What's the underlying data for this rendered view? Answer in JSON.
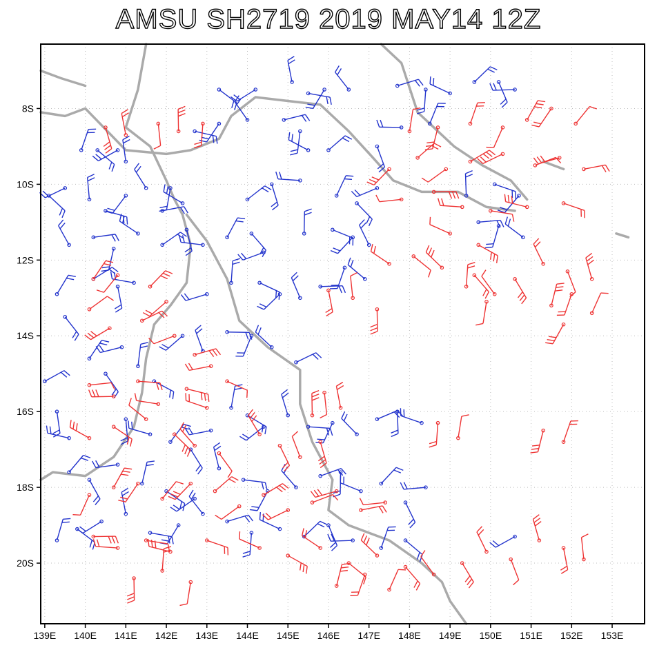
{
  "title": "AMSU SH2719 2019 MAY14 12Z",
  "map": {
    "lon_range": [
      138.9,
      153.8
    ],
    "lat_range": [
      -21.6,
      -6.3
    ],
    "lon_ticks": [
      "139E",
      "140E",
      "141E",
      "142E",
      "143E",
      "144E",
      "145E",
      "146E",
      "147E",
      "148E",
      "149E",
      "150E",
      "151E",
      "152E",
      "153E"
    ],
    "lat_ticks": [
      "8S",
      "10S",
      "12S",
      "14S",
      "16S",
      "18S",
      "20S"
    ],
    "grid": true,
    "colors": {
      "coast": "#aaaaaa",
      "upper_winds": "#2233cc",
      "lower_winds": "#ee3333",
      "grid": "#bbbbbb"
    }
  },
  "wind_barbs": {
    "blue": [
      [
        143.3,
        -7.5
      ],
      [
        144.2,
        -7.5
      ],
      [
        145.1,
        -7.3
      ],
      [
        145.5,
        -7.6
      ],
      [
        145.9,
        -7.5
      ],
      [
        146.5,
        -7.5
      ],
      [
        147.7,
        -7.4
      ],
      [
        148.4,
        -7.5
      ],
      [
        149.0,
        -7.6
      ],
      [
        149.6,
        -7.3
      ],
      [
        150.2,
        -7.3
      ],
      [
        150.6,
        -7.5
      ],
      [
        139.9,
        -9.1
      ],
      [
        140.3,
        -9.1
      ],
      [
        140.8,
        -9.1
      ],
      [
        141.0,
        -9.4
      ],
      [
        142.7,
        -8.6
      ],
      [
        143.3,
        -8.4
      ],
      [
        144.0,
        -8.3
      ],
      [
        144.9,
        -8.3
      ],
      [
        145.3,
        -8.6
      ],
      [
        145.5,
        -9.1
      ],
      [
        146.0,
        -9.1
      ],
      [
        147.2,
        -9.0
      ],
      [
        147.8,
        -8.5
      ],
      [
        148.5,
        -8.4
      ],
      [
        139.1,
        -10.3
      ],
      [
        139.5,
        -10.1
      ],
      [
        140.1,
        -10.4
      ],
      [
        140.5,
        -10.7
      ],
      [
        141.0,
        -10.3
      ],
      [
        141.5,
        -10.1
      ],
      [
        141.9,
        -10.7
      ],
      [
        142.1,
        -10.1
      ],
      [
        142.4,
        -10.5
      ],
      [
        144.0,
        -10.4
      ],
      [
        144.6,
        -10.0
      ],
      [
        145.3,
        -9.9
      ],
      [
        146.2,
        -10.3
      ],
      [
        146.7,
        -10.5
      ],
      [
        147.2,
        -10.1
      ],
      [
        149.4,
        -10.3
      ],
      [
        150.1,
        -10.0
      ],
      [
        150.7,
        -10.3
      ],
      [
        139.6,
        -11.6
      ],
      [
        140.2,
        -11.4
      ],
      [
        140.7,
        -11.7
      ],
      [
        141.3,
        -11.3
      ],
      [
        141.9,
        -11.6
      ],
      [
        142.5,
        -11.2
      ],
      [
        142.9,
        -11.6
      ],
      [
        143.5,
        -11.4
      ],
      [
        144.1,
        -11.3
      ],
      [
        144.4,
        -11.8
      ],
      [
        145.4,
        -11.3
      ],
      [
        146.1,
        -11.2
      ],
      [
        146.6,
        -11.4
      ],
      [
        147.0,
        -11.6
      ],
      [
        149.7,
        -11.0
      ],
      [
        150.2,
        -11.1
      ],
      [
        150.8,
        -11.4
      ],
      [
        140.2,
        -12.5
      ],
      [
        140.8,
        -12.7
      ],
      [
        141.2,
        -12.6
      ],
      [
        139.3,
        -12.9
      ],
      [
        139.5,
        -13.5
      ],
      [
        143.0,
        -12.9
      ],
      [
        143.6,
        -12.6
      ],
      [
        144.3,
        -12.6
      ],
      [
        144.8,
        -12.9
      ],
      [
        145.3,
        -13.0
      ],
      [
        145.8,
        -12.7
      ],
      [
        146.4,
        -12.2
      ],
      [
        146.9,
        -12.5
      ],
      [
        139.0,
        -15.2
      ],
      [
        139.3,
        -16.0
      ],
      [
        139.6,
        -16.7
      ],
      [
        140.1,
        -14.6
      ],
      [
        140.5,
        -15.0
      ],
      [
        140.9,
        -14.3
      ],
      [
        141.3,
        -14.8
      ],
      [
        141.7,
        -15.2
      ],
      [
        142.4,
        -14.0
      ],
      [
        142.9,
        -14.4
      ],
      [
        143.5,
        -13.9
      ],
      [
        144.1,
        -14.0
      ],
      [
        144.6,
        -14.3
      ],
      [
        145.2,
        -14.7
      ],
      [
        141.0,
        -16.2
      ],
      [
        141.6,
        -16.6
      ],
      [
        142.1,
        -16.8
      ],
      [
        142.6,
        -17.0
      ],
      [
        143.1,
        -16.5
      ],
      [
        143.6,
        -15.9
      ],
      [
        144.0,
        -16.1
      ],
      [
        144.4,
        -16.4
      ],
      [
        145.0,
        -16.1
      ],
      [
        145.5,
        -16.4
      ],
      [
        146.1,
        -16.3
      ],
      [
        146.7,
        -16.6
      ],
      [
        147.2,
        -16.2
      ],
      [
        147.7,
        -16.0
      ],
      [
        148.3,
        -16.3
      ],
      [
        139.6,
        -17.6
      ],
      [
        140.1,
        -17.8
      ],
      [
        140.8,
        -17.4
      ],
      [
        141.4,
        -17.9
      ],
      [
        142.0,
        -18.1
      ],
      [
        142.7,
        -18.3
      ],
      [
        143.3,
        -17.5
      ],
      [
        143.9,
        -17.8
      ],
      [
        144.5,
        -18.1
      ],
      [
        145.2,
        -18.0
      ],
      [
        145.8,
        -17.7
      ],
      [
        146.3,
        -17.6
      ],
      [
        146.8,
        -18.1
      ],
      [
        147.3,
        -17.9
      ],
      [
        147.9,
        -18.4
      ],
      [
        148.4,
        -18.0
      ],
      [
        139.3,
        -19.4
      ],
      [
        139.8,
        -19.1
      ],
      [
        140.4,
        -18.9
      ],
      [
        141.0,
        -18.7
      ],
      [
        141.6,
        -19.2
      ],
      [
        142.3,
        -19.0
      ],
      [
        142.9,
        -18.7
      ],
      [
        143.5,
        -18.9
      ],
      [
        144.1,
        -19.2
      ],
      [
        144.8,
        -19.1
      ],
      [
        145.4,
        -19.3
      ],
      [
        146.0,
        -19.0
      ],
      [
        146.6,
        -19.4
      ],
      [
        147.3,
        -19.6
      ],
      [
        147.9,
        -19.4
      ],
      [
        150.6,
        -19.3
      ]
    ],
    "red": [
      [
        140.5,
        -8.5
      ],
      [
        141.0,
        -8.7
      ],
      [
        141.8,
        -8.4
      ],
      [
        142.3,
        -8.6
      ],
      [
        142.9,
        -8.4
      ],
      [
        148.0,
        -8.6
      ],
      [
        148.7,
        -8.5
      ],
      [
        149.5,
        -8.4
      ],
      [
        150.3,
        -8.5
      ],
      [
        150.9,
        -8.3
      ],
      [
        151.5,
        -8.0
      ],
      [
        152.1,
        -8.4
      ],
      [
        147.5,
        -9.6
      ],
      [
        148.2,
        -9.3
      ],
      [
        148.9,
        -9.6
      ],
      [
        149.5,
        -9.4
      ],
      [
        150.3,
        -9.2
      ],
      [
        151.1,
        -9.5
      ],
      [
        151.7,
        -9.3
      ],
      [
        152.3,
        -9.6
      ],
      [
        147.8,
        -10.4
      ],
      [
        148.6,
        -10.2
      ],
      [
        149.3,
        -10.6
      ],
      [
        150.0,
        -10.7
      ],
      [
        150.9,
        -10.6
      ],
      [
        151.8,
        -10.5
      ],
      [
        149.0,
        -11.3
      ],
      [
        149.7,
        -11.6
      ],
      [
        147.5,
        -12.1
      ],
      [
        148.1,
        -11.9
      ],
      [
        148.8,
        -12.2
      ],
      [
        149.6,
        -12.4
      ],
      [
        150.1,
        -12.9
      ],
      [
        150.6,
        -12.5
      ],
      [
        151.3,
        -12.1
      ],
      [
        151.9,
        -12.3
      ],
      [
        152.5,
        -12.5
      ],
      [
        146.0,
        -12.8
      ],
      [
        146.6,
        -13.0
      ],
      [
        147.2,
        -13.3
      ],
      [
        149.4,
        -12.7
      ],
      [
        149.9,
        -13.1
      ],
      [
        151.5,
        -13.2
      ],
      [
        152.0,
        -12.9
      ],
      [
        152.5,
        -13.4
      ],
      [
        151.8,
        -13.7
      ],
      [
        140.2,
        -12.5
      ],
      [
        140.8,
        -12.4
      ],
      [
        141.6,
        -12.7
      ],
      [
        142.0,
        -13.1
      ],
      [
        140.1,
        -13.3
      ],
      [
        140.6,
        -13.8
      ],
      [
        141.4,
        -13.6
      ],
      [
        142.2,
        -14.0
      ],
      [
        142.7,
        -14.5
      ],
      [
        143.1,
        -14.8
      ],
      [
        140.1,
        -15.3
      ],
      [
        140.7,
        -15.6
      ],
      [
        141.3,
        -15.2
      ],
      [
        141.8,
        -15.8
      ],
      [
        142.5,
        -15.4
      ],
      [
        143.0,
        -15.9
      ],
      [
        143.5,
        -15.2
      ],
      [
        140.1,
        -16.7
      ],
      [
        140.7,
        -16.4
      ],
      [
        141.5,
        -16.2
      ],
      [
        142.2,
        -16.6
      ],
      [
        142.7,
        -16.9
      ],
      [
        143.3,
        -17.1
      ],
      [
        144.3,
        -16.6
      ],
      [
        144.8,
        -16.9
      ],
      [
        145.3,
        -17.2
      ],
      [
        145.8,
        -16.8
      ],
      [
        146.3,
        -15.9
      ],
      [
        145.9,
        -15.5
      ],
      [
        145.6,
        -16.1
      ],
      [
        148.7,
        -16.3
      ],
      [
        149.2,
        -16.7
      ],
      [
        151.3,
        -16.5
      ],
      [
        151.8,
        -16.8
      ],
      [
        140.1,
        -18.2
      ],
      [
        140.7,
        -18.0
      ],
      [
        141.3,
        -17.9
      ],
      [
        141.9,
        -18.3
      ],
      [
        142.6,
        -17.9
      ],
      [
        143.2,
        -18.1
      ],
      [
        143.8,
        -18.5
      ],
      [
        144.4,
        -18.2
      ],
      [
        145.0,
        -18.6
      ],
      [
        145.6,
        -18.4
      ],
      [
        146.2,
        -18.1
      ],
      [
        146.8,
        -18.6
      ],
      [
        147.4,
        -18.4
      ],
      [
        140.2,
        -19.3
      ],
      [
        140.8,
        -19.6
      ],
      [
        141.5,
        -19.4
      ],
      [
        142.1,
        -19.7
      ],
      [
        143.0,
        -19.4
      ],
      [
        144.3,
        -19.6
      ],
      [
        145.0,
        -19.8
      ],
      [
        145.8,
        -19.6
      ],
      [
        146.5,
        -20.0
      ],
      [
        147.2,
        -19.8
      ],
      [
        147.9,
        -20.1
      ],
      [
        148.6,
        -20.3
      ],
      [
        149.3,
        -20.0
      ],
      [
        149.9,
        -19.7
      ],
      [
        150.5,
        -19.9
      ],
      [
        151.2,
        -19.4
      ],
      [
        151.8,
        -19.6
      ],
      [
        152.3,
        -19.9
      ],
      [
        141.2,
        -20.4
      ],
      [
        141.9,
        -20.2
      ],
      [
        142.6,
        -20.5
      ],
      [
        146.2,
        -20.6
      ],
      [
        146.9,
        -20.3
      ],
      [
        147.5,
        -20.7
      ]
    ]
  }
}
